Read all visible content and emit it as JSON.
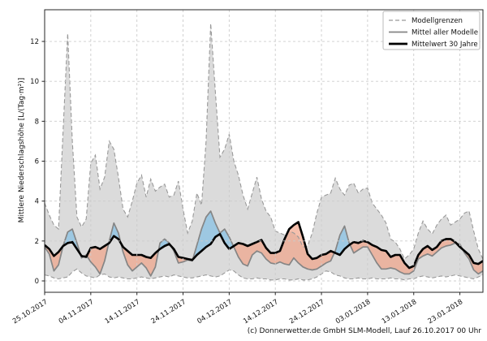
{
  "chart_data": {
    "type": "line",
    "title": "",
    "xlabel": "",
    "ylabel": "Mittlere Niederschlagshöhe [L/(Tag·m²)]",
    "caption": "(c) Donnerwetter.de GmbH SLM-Modell, Lauf 26.10.2017 00 Uhr",
    "x_unit": "Tage (25.10.2017 bis 28.01.2018)",
    "days_total": 95,
    "ylim": [
      0,
      13
    ],
    "grid": true,
    "y_ticks": [
      0,
      2,
      4,
      6,
      8,
      10,
      12
    ],
    "x_ticks": [
      {
        "day": 0,
        "label": "25.10.2017"
      },
      {
        "day": 10,
        "label": "04.11.2017"
      },
      {
        "day": 20,
        "label": "14.11.2017"
      },
      {
        "day": 30,
        "label": "24.11.2017"
      },
      {
        "day": 40,
        "label": "04.12.2017"
      },
      {
        "day": 50,
        "label": "14.12.2017"
      },
      {
        "day": 60,
        "label": "24.12.2017"
      },
      {
        "day": 70,
        "label": "03.01.2018"
      },
      {
        "day": 80,
        "label": "13.01.2018"
      },
      {
        "day": 90,
        "label": "23.01.2018"
      }
    ],
    "legend": {
      "position": "top-right",
      "entries": [
        {
          "label": "Modellgrenzen",
          "style": "dashed-gray"
        },
        {
          "label": "Mittel aller Modelle",
          "style": "solid-gray"
        },
        {
          "label": "Mittelwert 30 Jahre",
          "style": "solid-black"
        }
      ]
    },
    "colors": {
      "band_fill": "#dbdbdb",
      "bound_line": "#999999",
      "mean_line": "#858585",
      "normal_line": "#000000",
      "above_fill": "rgba(140,195,228,0.78)",
      "below_fill": "rgba(242,160,130,0.66)",
      "grid": "#cccccc",
      "spine": "#262626"
    },
    "series": [
      {
        "name": "Modellgrenzen max",
        "values": [
          3.9,
          3.3,
          2.8,
          2.6,
          7.5,
          12.4,
          7.0,
          3.2,
          2.7,
          3.1,
          5.9,
          6.3,
          4.6,
          5.2,
          7.0,
          6.6,
          5.2,
          3.6,
          3.2,
          4.0,
          4.9,
          5.3,
          4.2,
          5.1,
          4.5,
          4.7,
          4.85,
          4.2,
          4.3,
          5.0,
          3.6,
          2.4,
          3.0,
          4.4,
          3.8,
          7.0,
          12.9,
          9.5,
          6.2,
          6.6,
          7.35,
          6.0,
          5.3,
          4.3,
          3.6,
          4.4,
          5.2,
          4.1,
          3.5,
          3.2,
          2.5,
          2.4,
          2.3,
          2.5,
          2.4,
          2.2,
          1.7,
          1.75,
          2.4,
          3.4,
          4.2,
          4.3,
          4.4,
          5.15,
          4.6,
          4.3,
          4.8,
          4.9,
          4.4,
          4.6,
          4.65,
          3.9,
          3.6,
          3.3,
          2.9,
          2.1,
          1.95,
          1.6,
          1.1,
          1.3,
          1.6,
          2.4,
          3.0,
          2.6,
          2.35,
          2.8,
          3.1,
          3.3,
          2.8,
          2.95,
          3.1,
          3.4,
          3.5,
          2.5,
          1.6,
          1.1
        ]
      },
      {
        "name": "Modellgrenzen min",
        "values": [
          0.3,
          0.25,
          0.15,
          0.1,
          0.15,
          0.2,
          0.45,
          0.6,
          0.4,
          0.25,
          0.2,
          0.15,
          0.3,
          0.35,
          0.2,
          0.15,
          0.2,
          0.15,
          0.1,
          0.1,
          0.15,
          0.2,
          0.15,
          0.1,
          0.15,
          0.2,
          0.25,
          0.2,
          0.3,
          0.25,
          0.2,
          0.15,
          0.15,
          0.2,
          0.25,
          0.3,
          0.25,
          0.2,
          0.25,
          0.4,
          0.55,
          0.5,
          0.3,
          0.15,
          0.1,
          0.1,
          0.15,
          0.1,
          0.1,
          0.05,
          0.05,
          0.1,
          0.1,
          0.05,
          0.05,
          0.1,
          0.05,
          0.05,
          0.1,
          0.2,
          0.35,
          0.5,
          0.45,
          0.3,
          0.25,
          0.15,
          0.1,
          0.1,
          0.15,
          0.1,
          0.1,
          0.15,
          0.1,
          0.1,
          0.1,
          0.15,
          0.1,
          0.1,
          0.05,
          0.1,
          0.1,
          0.2,
          0.25,
          0.2,
          0.15,
          0.2,
          0.25,
          0.2,
          0.25,
          0.3,
          0.25,
          0.2,
          0.15,
          0.1,
          0.2,
          0.3
        ]
      },
      {
        "name": "Mittel aller Modelle",
        "values": [
          1.7,
          1.35,
          0.5,
          0.8,
          1.75,
          2.45,
          2.6,
          1.9,
          1.15,
          1.3,
          0.95,
          0.7,
          0.35,
          1.0,
          2.0,
          2.9,
          2.4,
          1.45,
          0.8,
          0.5,
          0.7,
          0.9,
          0.65,
          0.25,
          0.7,
          1.9,
          2.1,
          1.9,
          1.5,
          0.9,
          0.95,
          1.05,
          1.0,
          1.8,
          2.6,
          3.2,
          3.5,
          2.9,
          2.4,
          2.6,
          2.2,
          1.7,
          1.2,
          0.85,
          0.75,
          1.3,
          1.5,
          1.4,
          1.1,
          0.9,
          0.85,
          0.95,
          0.85,
          0.8,
          1.15,
          0.9,
          0.7,
          0.6,
          0.55,
          0.6,
          0.75,
          0.9,
          1.0,
          1.5,
          2.3,
          2.75,
          1.9,
          1.4,
          1.55,
          1.7,
          1.7,
          1.3,
          0.9,
          0.6,
          0.6,
          0.65,
          0.6,
          0.45,
          0.35,
          0.35,
          0.5,
          1.1,
          1.25,
          1.35,
          1.25,
          1.45,
          1.65,
          1.75,
          1.8,
          1.9,
          1.85,
          1.4,
          1.1,
          0.55,
          0.35,
          0.5
        ]
      },
      {
        "name": "Mittelwert 30 Jahre",
        "values": [
          1.8,
          1.6,
          1.25,
          1.45,
          1.75,
          1.9,
          1.95,
          1.6,
          1.25,
          1.2,
          1.65,
          1.7,
          1.6,
          1.75,
          1.9,
          2.25,
          2.1,
          1.7,
          1.5,
          1.3,
          1.3,
          1.3,
          1.2,
          1.15,
          1.4,
          1.6,
          1.75,
          1.85,
          1.6,
          1.2,
          1.15,
          1.1,
          1.05,
          1.3,
          1.5,
          1.7,
          1.85,
          2.2,
          2.35,
          1.9,
          1.6,
          1.75,
          1.9,
          1.85,
          1.75,
          1.85,
          1.95,
          2.05,
          1.65,
          1.4,
          1.4,
          1.5,
          2.1,
          2.6,
          2.8,
          2.95,
          2.2,
          1.35,
          1.1,
          1.15,
          1.3,
          1.35,
          1.5,
          1.4,
          1.3,
          1.6,
          1.8,
          1.95,
          1.9,
          2.0,
          1.95,
          1.8,
          1.7,
          1.55,
          1.5,
          1.2,
          1.3,
          1.3,
          0.9,
          0.65,
          0.75,
          1.3,
          1.6,
          1.75,
          1.55,
          1.7,
          2.0,
          2.1,
          2.1,
          1.95,
          1.7,
          1.5,
          1.3,
          0.9,
          0.85,
          1.0
        ]
      }
    ]
  }
}
